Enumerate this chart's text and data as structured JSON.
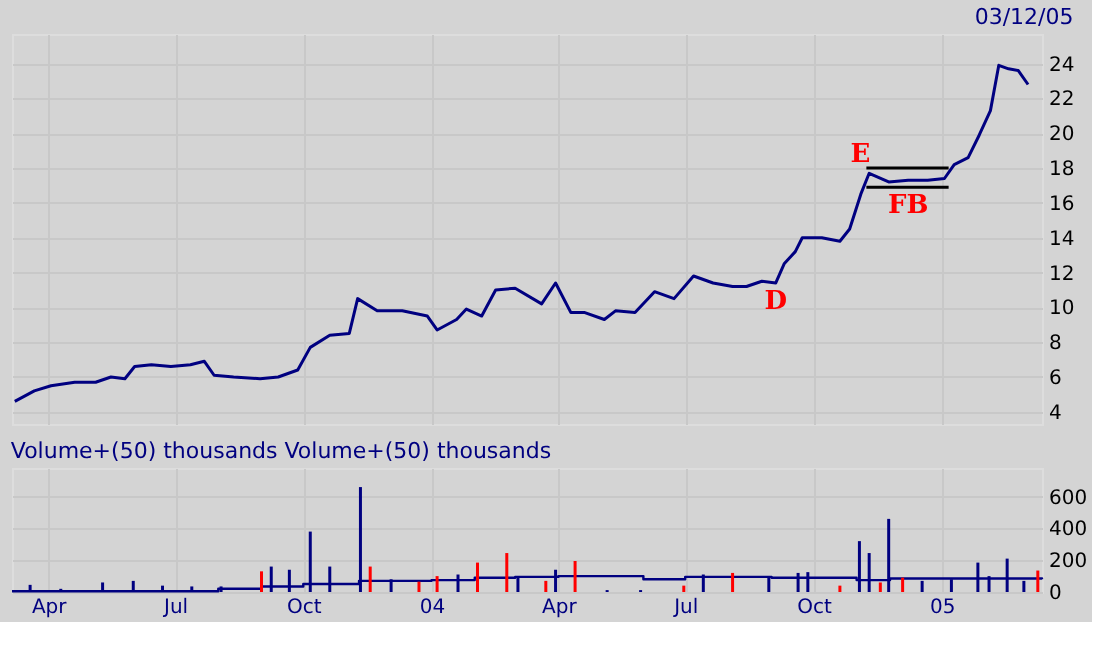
{
  "chart_data": [
    {
      "type": "line",
      "annotations": [
        {
          "text": "E",
          "x": "2004-11-08",
          "y": 18.0
        },
        {
          "text": "D",
          "x": "2004-09-04",
          "y": 11.4
        },
        {
          "text": "FB",
          "x": "2004-12-08",
          "y": 16.9
        },
        "03/12/05"
      ],
      "xlim": [
        "2003-03-06",
        "2005-03-14"
      ],
      "xticks": [
        {
          "value": "2003-04-01",
          "label": null
        },
        {
          "value": "2003-07-01",
          "label": null
        },
        {
          "value": "2003-10-01",
          "label": null
        },
        {
          "value": "2004-01-01",
          "label": null
        },
        {
          "value": "2004-04-01",
          "label": null
        },
        {
          "value": "2004-07-01",
          "label": null
        },
        {
          "value": "2004-10-01",
          "label": null
        },
        {
          "value": "2005-01-01",
          "label": null
        }
      ],
      "ylim": [
        3.3,
        25.7
      ],
      "yticks": [
        4,
        6,
        8,
        10,
        12,
        14,
        16,
        18,
        20,
        22,
        24
      ],
      "tick_labels": "y",
      "grid": true,
      "marker": "none",
      "line_style": "solid",
      "series": [
        {
          "color": "#000080",
          "x": [
            "2003-03-08",
            "2003-03-22",
            "2003-04-03",
            "2003-04-20",
            "2003-05-05",
            "2003-05-16",
            "2003-05-26",
            "2003-06-02",
            "2003-06-14",
            "2003-06-28",
            "2003-07-12",
            "2003-07-22",
            "2003-07-29",
            "2003-08-12",
            "2003-08-31",
            "2003-09-13",
            "2003-09-27",
            "2003-10-06",
            "2003-10-20",
            "2003-11-03",
            "2003-11-09",
            "2003-11-23",
            "2003-12-11",
            "2003-12-29",
            "2004-01-05",
            "2004-01-19",
            "2004-01-26",
            "2004-02-06",
            "2004-02-16",
            "2004-03-01",
            "2004-03-20",
            "2004-03-30",
            "2004-04-10",
            "2004-04-20",
            "2004-05-04",
            "2004-05-12",
            "2004-05-26",
            "2004-06-09",
            "2004-06-23",
            "2004-07-07",
            "2004-07-21",
            "2004-08-04",
            "2004-08-14",
            "2004-08-25",
            "2004-09-04",
            "2004-09-10",
            "2004-09-18",
            "2004-09-23",
            "2004-10-07",
            "2004-10-20",
            "2004-10-27",
            "2004-11-04",
            "2004-11-10",
            "2004-11-24",
            "2004-12-08",
            "2004-12-22",
            "2005-01-03",
            "2005-01-10",
            "2005-01-20",
            "2005-01-28",
            "2005-02-05",
            "2005-02-11",
            "2005-02-18",
            "2005-02-25",
            "2005-03-04"
          ],
          "values": [
            4.6,
            5.2,
            5.5,
            5.7,
            5.7,
            6.0,
            5.9,
            6.6,
            6.7,
            6.6,
            6.7,
            6.9,
            6.1,
            6.0,
            5.9,
            6.0,
            6.4,
            7.7,
            8.4,
            8.5,
            10.5,
            9.8,
            9.8,
            9.5,
            8.7,
            9.3,
            9.9,
            9.5,
            11.0,
            11.1,
            10.2,
            11.4,
            9.7,
            9.7,
            9.3,
            9.8,
            9.7,
            10.9,
            10.5,
            11.8,
            11.4,
            11.2,
            11.2,
            11.5,
            11.4,
            12.5,
            13.2,
            14.0,
            14.0,
            13.8,
            14.5,
            16.5,
            17.7,
            17.2,
            17.3,
            17.3,
            17.4,
            18.2,
            18.6,
            19.9,
            21.3,
            23.9,
            23.7,
            23.6,
            22.8
          ]
        },
        {
          "color": "#000000",
          "x": [
            "2004-11-08",
            "2005-01-06"
          ],
          "values": [
            18.0,
            18.0
          ]
        },
        {
          "color": "#000000",
          "x": [
            "2004-11-08",
            "2005-01-06"
          ],
          "values": [
            16.9,
            16.9
          ]
        }
      ]
    },
    {
      "type": "bar",
      "title": "Volume+(50) thousands    Volume+(50) thousands",
      "xlim": [
        "2003-03-06",
        "2005-03-14"
      ],
      "xticks": [
        {
          "value": "2003-04-01",
          "label": "Apr"
        },
        {
          "value": "2003-07-01",
          "label": "Jul"
        },
        {
          "value": "2003-10-01",
          "label": "Oct"
        },
        {
          "value": "2004-01-01",
          "label": "04"
        },
        {
          "value": "2004-04-01",
          "label": "Apr"
        },
        {
          "value": "2004-07-01",
          "label": "Jul"
        },
        {
          "value": "2004-10-01",
          "label": "Oct"
        },
        {
          "value": "2005-01-01",
          "label": "05"
        }
      ],
      "ylim": [
        0,
        780
      ],
      "yticks": [
        0,
        200,
        400,
        600
      ],
      "grid": true,
      "series": [
        {
          "type": "bar",
          "x": [
            "2003-03-19",
            "2003-04-10",
            "2003-05-10",
            "2003-06-01",
            "2003-06-22",
            "2003-07-13",
            "2003-08-03",
            "2003-09-01",
            "2003-09-08",
            "2003-09-21",
            "2003-10-06",
            "2003-10-20",
            "2003-11-11",
            "2003-11-18",
            "2003-12-03",
            "2003-12-23",
            "2004-01-05",
            "2004-01-20",
            "2004-02-03",
            "2004-02-24",
            "2004-03-03",
            "2004-03-23",
            "2004-03-30",
            "2004-04-13",
            "2004-05-06",
            "2004-05-30",
            "2004-06-30",
            "2004-07-14",
            "2004-08-04",
            "2004-08-30",
            "2004-09-20",
            "2004-09-27",
            "2004-10-20",
            "2004-11-03",
            "2004-11-10",
            "2004-11-18",
            "2004-11-24",
            "2004-12-04",
            "2004-12-18",
            "2005-01-08",
            "2005-01-27",
            "2005-02-04",
            "2005-02-17",
            "2005-03-01",
            "2005-03-11"
          ],
          "values": [
            45,
            20,
            60,
            70,
            40,
            35,
            35,
            130,
            160,
            140,
            380,
            160,
            660,
            160,
            80,
            65,
            100,
            110,
            185,
            245,
            100,
            70,
            140,
            195,
            12,
            12,
            40,
            110,
            120,
            90,
            120,
            125,
            40,
            320,
            245,
            60,
            460,
            90,
            70,
            80,
            185,
            100,
            210,
            70,
            135
          ],
          "colors": [
            "#000080",
            "#000080",
            "#000080",
            "#000080",
            "#000080",
            "#000080",
            "#000080",
            "#ff0000",
            "#000080",
            "#000080",
            "#000080",
            "#000080",
            "#000080",
            "#ff0000",
            "#000080",
            "#ff0000",
            "#ff0000",
            "#000080",
            "#ff0000",
            "#ff0000",
            "#000080",
            "#ff0000",
            "#000080",
            "#ff0000",
            "#000080",
            "#000080",
            "#ff0000",
            "#000080",
            "#ff0000",
            "#000080",
            "#000080",
            "#000080",
            "#ff0000",
            "#000080",
            "#000080",
            "#ff0000",
            "#000080",
            "#ff0000",
            "#000080",
            "#000080",
            "#000080",
            "#000080",
            "#000080",
            "#000080",
            "#ff0000"
          ]
        },
        {
          "type": "step",
          "color": "#000080",
          "x": [
            "2003-03-06",
            "2003-08-01",
            "2003-09-01",
            "2003-10-01",
            "2003-11-10",
            "2004-01-01",
            "2004-02-01",
            "2004-03-01",
            "2004-04-01",
            "2004-06-01",
            "2004-07-01",
            "2004-09-01",
            "2004-11-01",
            "2004-11-25",
            "2005-03-14"
          ],
          "values": [
            5,
            20,
            35,
            50,
            70,
            75,
            90,
            95,
            100,
            80,
            95,
            90,
            75,
            85,
            80
          ]
        }
      ]
    }
  ]
}
